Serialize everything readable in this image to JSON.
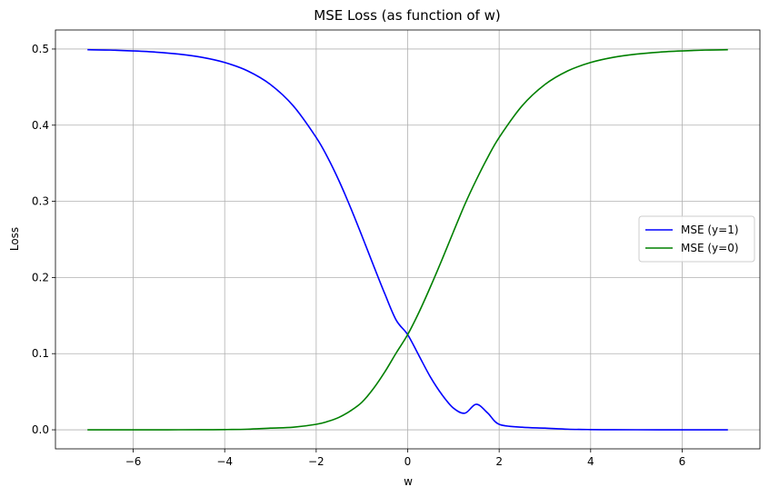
{
  "chart_data": {
    "type": "line",
    "title": "MSE Loss (as function of w)",
    "xlabel": "w",
    "ylabel": "Loss",
    "xlim": [
      -7.7,
      7.7
    ],
    "ylim": [
      -0.025,
      0.525
    ],
    "xticks": [
      -6,
      -4,
      -2,
      0,
      2,
      4,
      6
    ],
    "xtick_labels": [
      "−6",
      "−4",
      "−2",
      "0",
      "2",
      "4",
      "6"
    ],
    "yticks": [
      0.0,
      0.1,
      0.2,
      0.3,
      0.4,
      0.5
    ],
    "ytick_labels": [
      "0.0",
      "0.1",
      "0.2",
      "0.3",
      "0.4",
      "0.5"
    ],
    "grid": true,
    "legend_position": "center-right",
    "x": [
      -7,
      -6.5,
      -6,
      -5.5,
      -5,
      -4.5,
      -4,
      -3.5,
      -3,
      -2.5,
      -2,
      -1.75,
      -1.5,
      -1.25,
      -1,
      -0.75,
      -0.5,
      -0.25,
      0,
      0.25,
      0.5,
      0.75,
      1,
      1.25,
      1.5,
      1.75,
      2,
      2.5,
      3,
      3.5,
      4,
      4.5,
      5,
      5.5,
      6,
      6.5,
      7
    ],
    "series": [
      {
        "name": "MSE (y=1)",
        "color": "#0000ff",
        "values": [
          0.4991,
          0.4986,
          0.4975,
          0.4959,
          0.4933,
          0.4891,
          0.4823,
          0.4713,
          0.4534,
          0.4253,
          0.3839,
          0.3577,
          0.3268,
          0.292,
          0.2546,
          0.2162,
          0.1786,
          0.1439,
          0.125,
          0.097,
          0.069,
          0.0461,
          0.0285,
          0.0218,
          0.0335,
          0.022,
          0.0072,
          0.0034,
          0.0022,
          0.0008,
          0.0003,
          0.0001,
          5e-05,
          2e-05,
          1e-05,
          3e-06,
          1e-06
        ]
      },
      {
        "name": "MSE (y=0)",
        "color": "#008000",
        "values": [
          1e-06,
          3e-06,
          1e-05,
          2e-05,
          5e-05,
          0.0001,
          0.0003,
          0.0008,
          0.0022,
          0.0034,
          0.0072,
          0.0109,
          0.0164,
          0.0249,
          0.0362,
          0.054,
          0.076,
          0.101,
          0.125,
          0.1547,
          0.1881,
          0.2234,
          0.26,
          0.296,
          0.3282,
          0.3577,
          0.3839,
          0.4253,
          0.4534,
          0.4713,
          0.4823,
          0.4891,
          0.4933,
          0.4959,
          0.4975,
          0.4986,
          0.4991
        ]
      }
    ]
  }
}
